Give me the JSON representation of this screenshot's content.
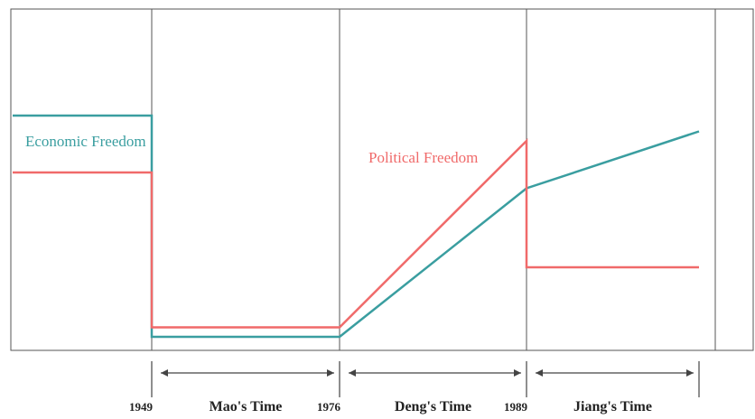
{
  "chart_data": {
    "type": "line",
    "title": "",
    "xlabel": "",
    "ylabel": "",
    "grid": false,
    "x_ticks": [
      "1949",
      "1976",
      "1989"
    ],
    "eras": [
      {
        "label": "Mao's Time",
        "start": 1949,
        "end": 1976
      },
      {
        "label": "Deng's Time",
        "start": 1976,
        "end": 1989
      },
      {
        "label": "Jiang's Time",
        "start": 1989,
        "end": 2001
      }
    ],
    "series": [
      {
        "name": "Economic Freedom",
        "color": "#3a9ea0",
        "points": [
          [
            1939,
            0.72
          ],
          [
            1949,
            0.72
          ],
          [
            1949,
            0.02
          ],
          [
            1976,
            0.02
          ],
          [
            1989,
            0.49
          ],
          [
            2001,
            0.67
          ]
        ]
      },
      {
        "name": "Political Freedom",
        "color": "#f06a6a",
        "points": [
          [
            1939,
            0.54
          ],
          [
            1949,
            0.54
          ],
          [
            1949,
            0.05
          ],
          [
            1976,
            0.05
          ],
          [
            1989,
            0.64
          ],
          [
            1989,
            0.24
          ],
          [
            2001,
            0.24
          ]
        ]
      }
    ]
  }
}
